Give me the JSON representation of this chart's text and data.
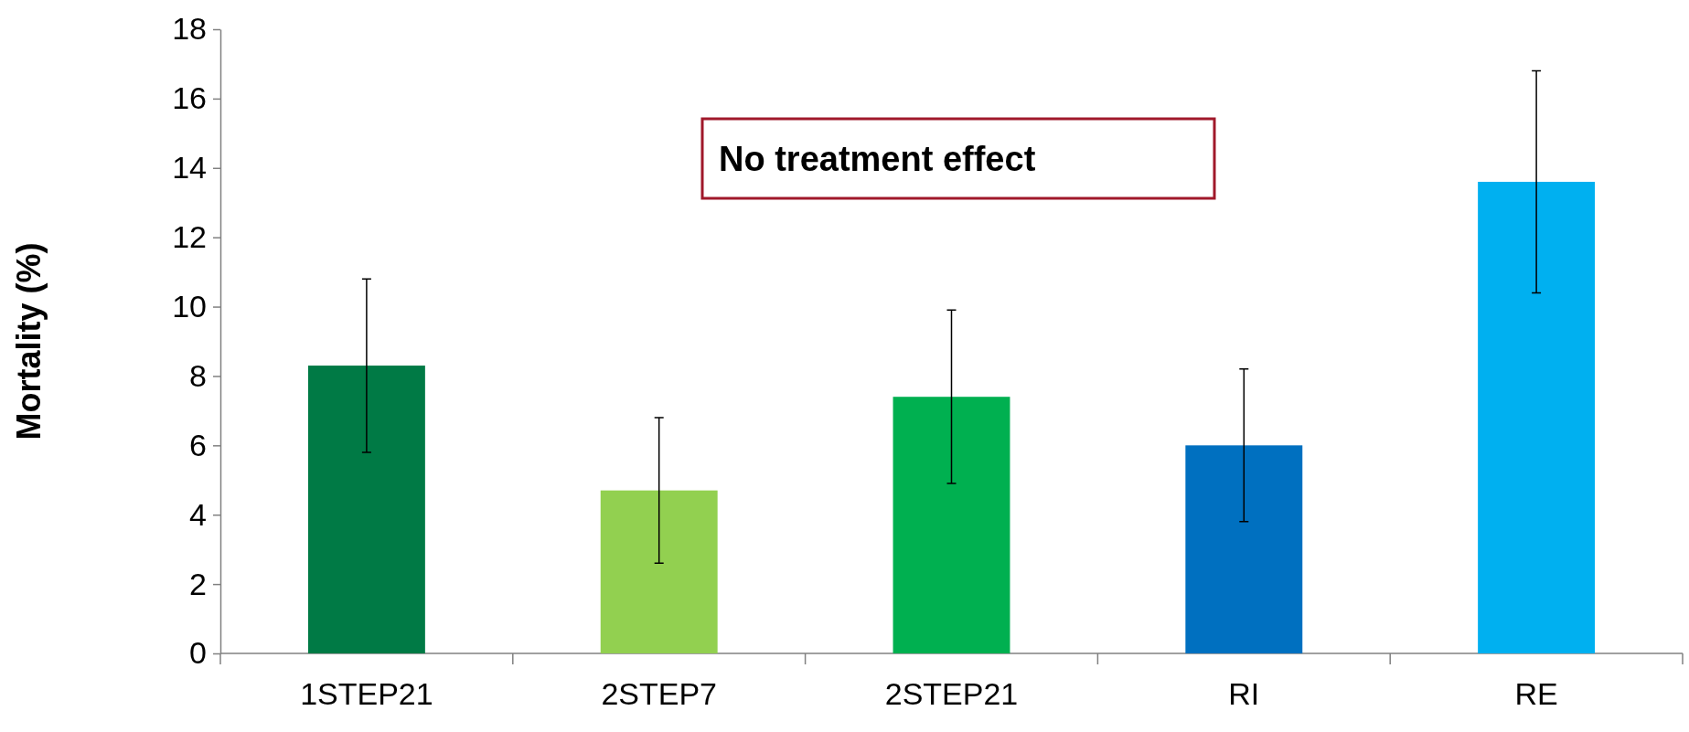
{
  "chart_data": {
    "type": "bar",
    "ylabel": "Mortality (%)",
    "categories": [
      "1STEP21",
      "2STEP7",
      "2STEP21",
      "RI",
      "RE"
    ],
    "values": [
      8.3,
      4.7,
      7.4,
      6.0,
      13.6
    ],
    "colors": [
      "#007a45",
      "#92d050",
      "#00b050",
      "#0070c0",
      "#00b0f0"
    ],
    "errors": [
      2.5,
      2.1,
      2.5,
      2.2,
      3.2
    ],
    "ylim": [
      0,
      18
    ],
    "yticks": [
      0,
      2,
      4,
      6,
      8,
      10,
      12,
      14,
      16,
      18
    ],
    "annotations": [
      "No treatment effect"
    ]
  }
}
